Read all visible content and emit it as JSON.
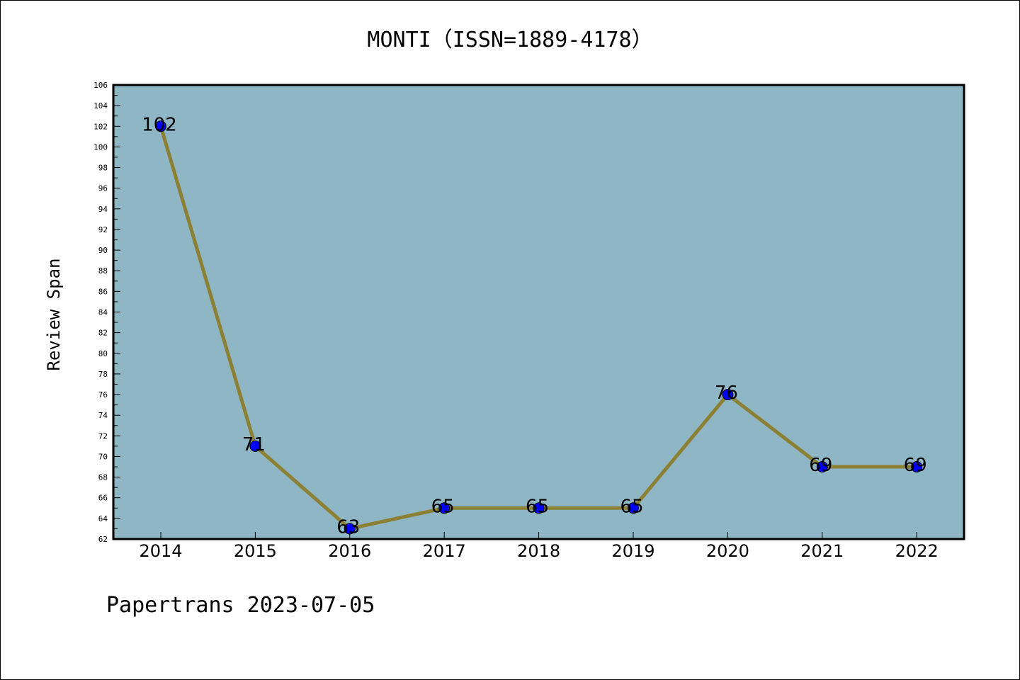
{
  "chart_data": {
    "type": "line",
    "title": "MONTI（ISSN=1889-4178）",
    "xlabel": "",
    "ylabel": "Review Span",
    "categories": [
      "2014",
      "2015",
      "2016",
      "2017",
      "2018",
      "2019",
      "2020",
      "2021",
      "2022"
    ],
    "series": [
      {
        "values": [
          102,
          71,
          63,
          65,
          65,
          65,
          76,
          69,
          69
        ]
      }
    ],
    "data_labels": [
      "102",
      "71",
      "63",
      "65",
      "65",
      "65",
      "76",
      "69",
      "69"
    ],
    "ylim": [
      62,
      106
    ],
    "ytick_step": 2,
    "grid": false,
    "legend": "none",
    "colors": {
      "plot_background": "#8fb6c5",
      "line": "#8b8033",
      "marker": "#0000ff"
    }
  },
  "footer": {
    "text": "Papertrans 2023-07-05"
  }
}
